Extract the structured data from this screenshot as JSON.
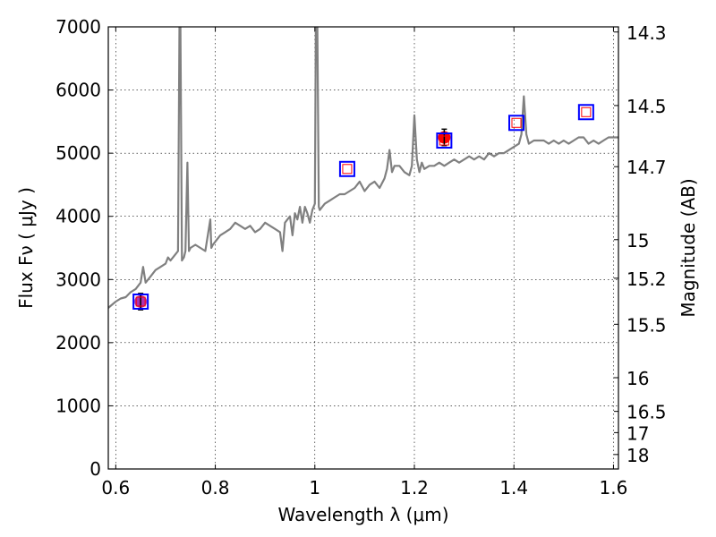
{
  "chart_data": {
    "type": "line",
    "xlabel": "Wavelength  λ (μm)",
    "ylabel": "Flux  Fν  ( μJy )",
    "ylabel_right": "Magnitude (AB)",
    "xlim": [
      0.585,
      1.61
    ],
    "ylim": [
      0,
      7000
    ],
    "grid": true,
    "x_ticks": [
      0.6,
      0.8,
      1.0,
      1.2,
      1.4,
      1.6
    ],
    "x_tick_labels": [
      "0.6",
      "0.8",
      "1",
      "1.2",
      "1.4",
      "1.6"
    ],
    "y_ticks": [
      0,
      1000,
      2000,
      3000,
      4000,
      5000,
      6000,
      7000
    ],
    "y_tick_labels": [
      "0",
      "1000",
      "2000",
      "3000",
      "4000",
      "5000",
      "6000",
      "7000"
    ],
    "right_ticks": [
      {
        "mag": 14.3,
        "label": "14.3"
      },
      {
        "mag": 14.5,
        "label": "14.5"
      },
      {
        "mag": 14.7,
        "label": "14.7"
      },
      {
        "mag": 15.0,
        "label": "15"
      },
      {
        "mag": 15.2,
        "label": "15.2"
      },
      {
        "mag": 15.5,
        "label": "15.5"
      },
      {
        "mag": 16.0,
        "label": "16"
      },
      {
        "mag": 16.5,
        "label": "16.5"
      },
      {
        "mag": 17.0,
        "label": "17"
      },
      {
        "mag": 18.0,
        "label": "18"
      }
    ],
    "spectrum": {
      "color": "#808080",
      "x": [
        0.585,
        0.6,
        0.61,
        0.62,
        0.63,
        0.64,
        0.65,
        0.655,
        0.66,
        0.665,
        0.67,
        0.68,
        0.69,
        0.7,
        0.705,
        0.71,
        0.715,
        0.72,
        0.725,
        0.728,
        0.73,
        0.733,
        0.737,
        0.74,
        0.744,
        0.747,
        0.75,
        0.76,
        0.77,
        0.78,
        0.79,
        0.792,
        0.795,
        0.8,
        0.81,
        0.82,
        0.83,
        0.84,
        0.85,
        0.86,
        0.87,
        0.88,
        0.89,
        0.9,
        0.91,
        0.92,
        0.93,
        0.935,
        0.94,
        0.945,
        0.95,
        0.955,
        0.96,
        0.965,
        0.97,
        0.975,
        0.98,
        0.985,
        0.99,
        0.995,
        1.0,
        1.002,
        1.005,
        1.008,
        1.01,
        1.015,
        1.02,
        1.03,
        1.04,
        1.05,
        1.06,
        1.07,
        1.08,
        1.09,
        1.1,
        1.11,
        1.12,
        1.13,
        1.14,
        1.145,
        1.15,
        1.155,
        1.16,
        1.17,
        1.18,
        1.19,
        1.195,
        1.2,
        1.205,
        1.21,
        1.215,
        1.22,
        1.23,
        1.24,
        1.25,
        1.26,
        1.27,
        1.28,
        1.29,
        1.3,
        1.31,
        1.32,
        1.33,
        1.34,
        1.35,
        1.36,
        1.37,
        1.38,
        1.39,
        1.4,
        1.41,
        1.415,
        1.42,
        1.425,
        1.43,
        1.44,
        1.45,
        1.46,
        1.47,
        1.48,
        1.49,
        1.5,
        1.51,
        1.52,
        1.53,
        1.54,
        1.55,
        1.56,
        1.57,
        1.58,
        1.59,
        1.6,
        1.61
      ],
      "y": [
        2550,
        2650,
        2700,
        2720,
        2800,
        2850,
        2950,
        3200,
        2950,
        3000,
        3050,
        3150,
        3200,
        3250,
        3350,
        3300,
        3350,
        3400,
        3450,
        7000,
        7000,
        3300,
        3350,
        3450,
        4850,
        3450,
        3500,
        3550,
        3500,
        3450,
        3950,
        3500,
        3550,
        3600,
        3700,
        3750,
        3800,
        3900,
        3850,
        3800,
        3850,
        3750,
        3800,
        3900,
        3850,
        3800,
        3750,
        3450,
        3900,
        3950,
        4000,
        3700,
        4050,
        3950,
        4150,
        3900,
        4150,
        4050,
        3900,
        4100,
        4200,
        7000,
        7000,
        4150,
        4100,
        4150,
        4200,
        4250,
        4300,
        4350,
        4350,
        4400,
        4450,
        4550,
        4400,
        4500,
        4550,
        4450,
        4600,
        4750,
        5050,
        4700,
        4800,
        4800,
        4700,
        4650,
        4800,
        5600,
        4900,
        4700,
        4850,
        4750,
        4800,
        4800,
        4850,
        4800,
        4850,
        4900,
        4850,
        4900,
        4950,
        4900,
        4950,
        4900,
        5000,
        4950,
        5000,
        5000,
        5050,
        5100,
        5150,
        5300,
        5900,
        5300,
        5150,
        5200,
        5200,
        5200,
        5150,
        5200,
        5150,
        5200,
        5150,
        5200,
        5250,
        5250,
        5150,
        5200,
        5150,
        5200,
        5250,
        5250,
        5250
      ]
    },
    "photometry": {
      "color": "#ff0000",
      "points": [
        {
          "x": 0.65,
          "y": 2650,
          "err": 130,
          "color": "#b030b0"
        },
        {
          "x": 1.26,
          "y": 5250,
          "err": 130,
          "color": "#ff0000"
        }
      ]
    },
    "model_points": {
      "outer_color": "#0000ff",
      "inner_color": "#ff0000",
      "points": [
        {
          "x": 0.65,
          "y": 2650
        },
        {
          "x": 1.065,
          "y": 4750
        },
        {
          "x": 1.26,
          "y": 5200
        },
        {
          "x": 1.405,
          "y": 5480
        },
        {
          "x": 1.545,
          "y": 5650
        }
      ]
    }
  }
}
